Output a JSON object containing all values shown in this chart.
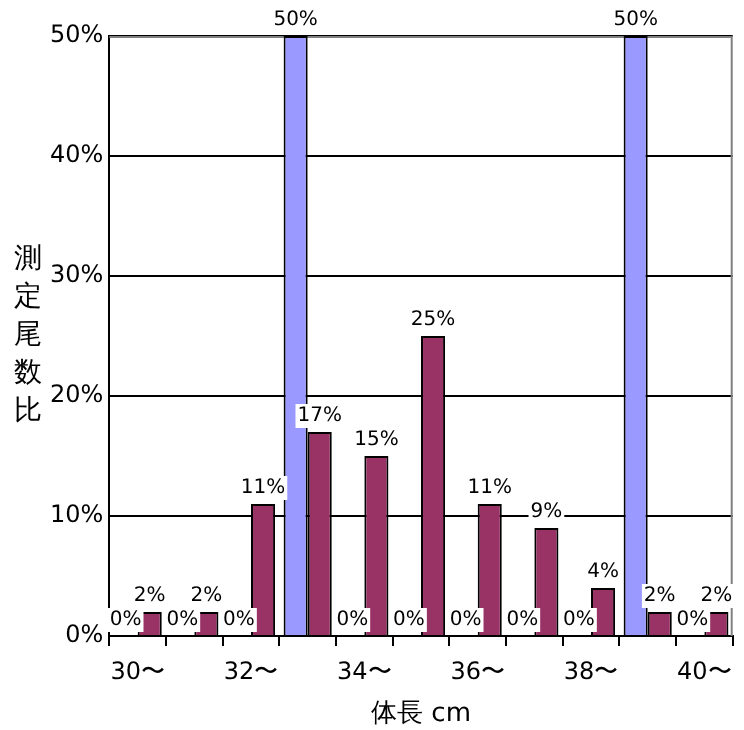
{
  "chart_data": {
    "type": "bar",
    "xlabel": "体長 cm",
    "ylabel": "測定尾数比",
    "categories": [
      "30〜",
      null,
      "32〜",
      null,
      "34〜",
      null,
      "36〜",
      null,
      "38〜",
      null,
      "40〜"
    ],
    "series": [
      {
        "color": "#9999ff",
        "values": [
          0,
          0,
          0,
          50,
          0,
          0,
          0,
          0,
          0,
          50,
          0
        ],
        "value_labels": [
          "0%",
          "0%",
          "0%",
          "50%",
          "0%",
          "0%",
          "0%",
          "0%",
          "0%",
          "50%",
          "0%"
        ]
      },
      {
        "color": "#993366",
        "values": [
          2,
          2,
          11,
          17,
          15,
          25,
          11,
          9,
          4,
          2,
          2
        ],
        "value_labels": [
          "2%",
          "2%",
          "11%",
          "17%",
          "15%",
          "25%",
          "11%",
          "9%",
          "4%",
          "2%",
          "2%"
        ]
      }
    ],
    "ylim": [
      0,
      50
    ],
    "yticks": [
      {
        "value": 0,
        "label": "0%"
      },
      {
        "value": 10,
        "label": "10%"
      },
      {
        "value": 20,
        "label": "20%"
      },
      {
        "value": 30,
        "label": "30%"
      },
      {
        "value": 40,
        "label": "40%"
      },
      {
        "value": 50,
        "label": "50%"
      }
    ],
    "grid": "y",
    "legend": false
  }
}
